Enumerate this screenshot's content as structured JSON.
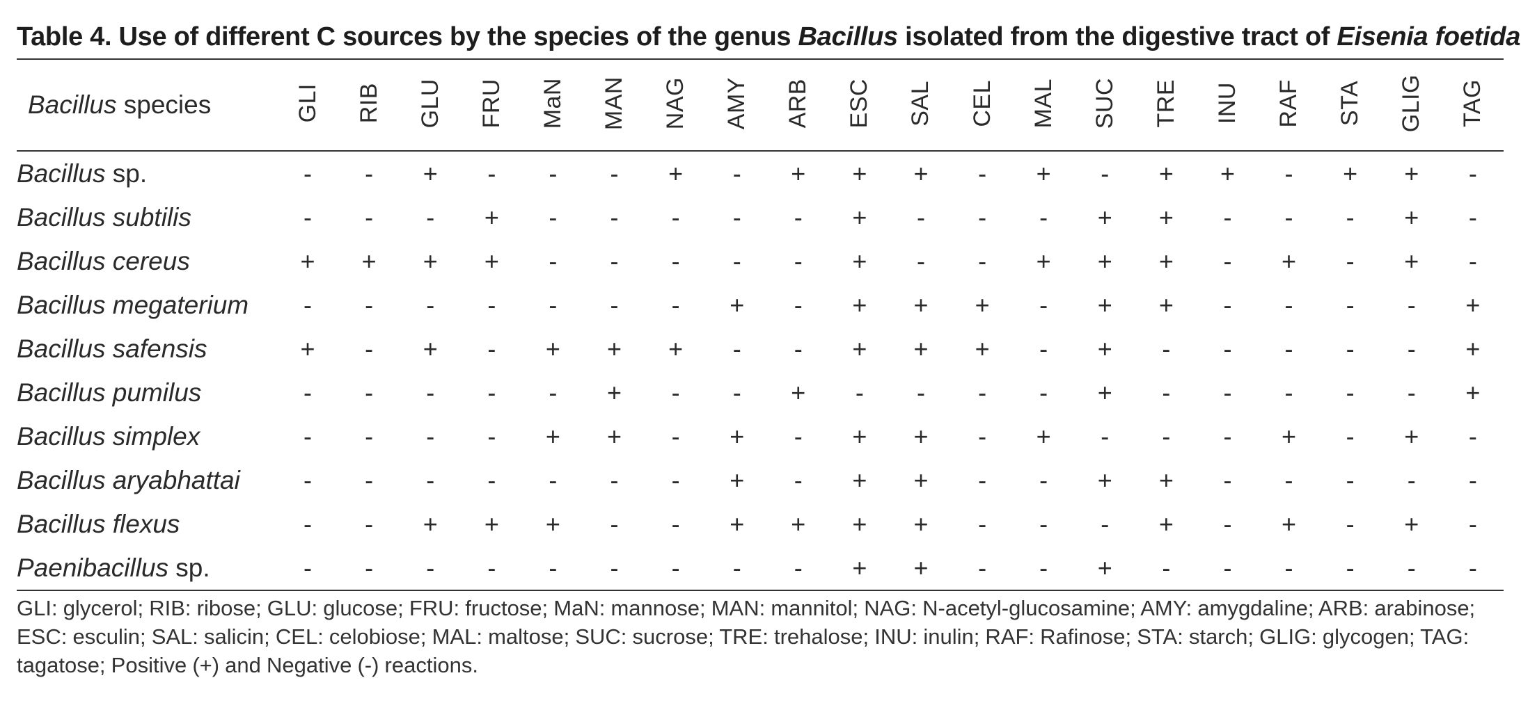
{
  "caption": {
    "prefix": "Table 4. Use of different C sources by the species of the genus ",
    "genus": "Bacillus",
    "middle": " isolated from the digestive tract of ",
    "host": "Eisenia foetida."
  },
  "table": {
    "header_species": {
      "genus": "Bacillus",
      "suffix": " species"
    },
    "columns": [
      "GLI",
      "RIB",
      "GLU",
      "FRU",
      "MaN",
      "MAN",
      "NAG",
      "AMY",
      "ARB",
      "ESC",
      "SAL",
      "CEL",
      "MAL",
      "SUC",
      "TRE",
      "INU",
      "RAF",
      "STA",
      "GLIG",
      "TAG"
    ],
    "rows": [
      {
        "genus": "Bacillus",
        "epithet": " sp.",
        "values": [
          "-",
          "-",
          "+",
          "-",
          "-",
          "-",
          "+",
          "-",
          "+",
          "+",
          "+",
          "-",
          "+",
          "-",
          "+",
          "+",
          "-",
          "+",
          "+",
          "-"
        ]
      },
      {
        "genus": "Bacillus subtilis",
        "epithet": "",
        "values": [
          "-",
          "-",
          "-",
          "+",
          "-",
          "-",
          "-",
          "-",
          "-",
          "+",
          "-",
          "-",
          "-",
          "+",
          "+",
          "-",
          "-",
          "-",
          "+",
          "-"
        ]
      },
      {
        "genus": "Bacillus cereus",
        "epithet": "",
        "values": [
          "+",
          "+",
          "+",
          "+",
          "-",
          "-",
          "-",
          "-",
          "-",
          "+",
          "-",
          "-",
          "+",
          "+",
          "+",
          "-",
          "+",
          "-",
          "+",
          "-"
        ]
      },
      {
        "genus": "Bacillus megaterium",
        "epithet": "",
        "values": [
          "-",
          "-",
          "-",
          "-",
          "-",
          "-",
          "-",
          "+",
          "-",
          "+",
          "+",
          "+",
          "-",
          "+",
          "+",
          "-",
          "-",
          "-",
          "-",
          "+"
        ]
      },
      {
        "genus": "Bacillus safensis",
        "epithet": "",
        "values": [
          "+",
          "-",
          "+",
          "-",
          "+",
          "+",
          "+",
          "-",
          "-",
          "+",
          "+",
          "+",
          "-",
          "+",
          "-",
          "-",
          "-",
          "-",
          "-",
          "+"
        ]
      },
      {
        "genus": "Bacillus pumilus",
        "epithet": "",
        "values": [
          "-",
          "-",
          "-",
          "-",
          "-",
          "+",
          "-",
          "-",
          "+",
          "-",
          "-",
          "-",
          "-",
          "+",
          "-",
          "-",
          "-",
          "-",
          "-",
          "+"
        ]
      },
      {
        "genus": "Bacillus simplex",
        "epithet": "",
        "values": [
          "-",
          "-",
          "-",
          "-",
          "+",
          "+",
          "-",
          "+",
          "-",
          "+",
          "+",
          "-",
          "+",
          "-",
          "-",
          "-",
          "+",
          "-",
          "+",
          "-"
        ]
      },
      {
        "genus": "Bacillus aryabhattai",
        "epithet": "",
        "values": [
          "-",
          "-",
          "-",
          "-",
          "-",
          "-",
          "-",
          "+",
          "-",
          "+",
          "+",
          "-",
          "-",
          "+",
          "+",
          "-",
          "-",
          "-",
          "-",
          "-"
        ]
      },
      {
        "genus": "Bacillus flexus",
        "epithet": "",
        "values": [
          "-",
          "-",
          "+",
          "+",
          "+",
          "-",
          "-",
          "+",
          "+",
          "+",
          "+",
          "-",
          "-",
          "-",
          "+",
          "-",
          "+",
          "-",
          "+",
          "-"
        ]
      },
      {
        "genus": "Paenibacillus",
        "epithet": " sp.",
        "values": [
          "-",
          "-",
          "-",
          "-",
          "-",
          "-",
          "-",
          "-",
          "-",
          "+",
          "+",
          "-",
          "-",
          "+",
          "-",
          "-",
          "-",
          "-",
          "-",
          "-"
        ]
      }
    ]
  },
  "footnote": "GLI: glycerol; RIB: ribose; GLU: glucose; FRU: fructose; MaN: mannose; MAN: mannitol; NAG: N-acetyl-glucosamine; AMY: amygdaline; ARB: arabinose; ESC: esculin; SAL: salicin; CEL: celobiose; MAL: maltose; SUC: sucrose; TRE: trehalose; INU: inulin; RAF: Rafinose; STA: starch; GLIG: glycogen; TAG: tagatose; Positive (+) and Negative (-) reactions."
}
